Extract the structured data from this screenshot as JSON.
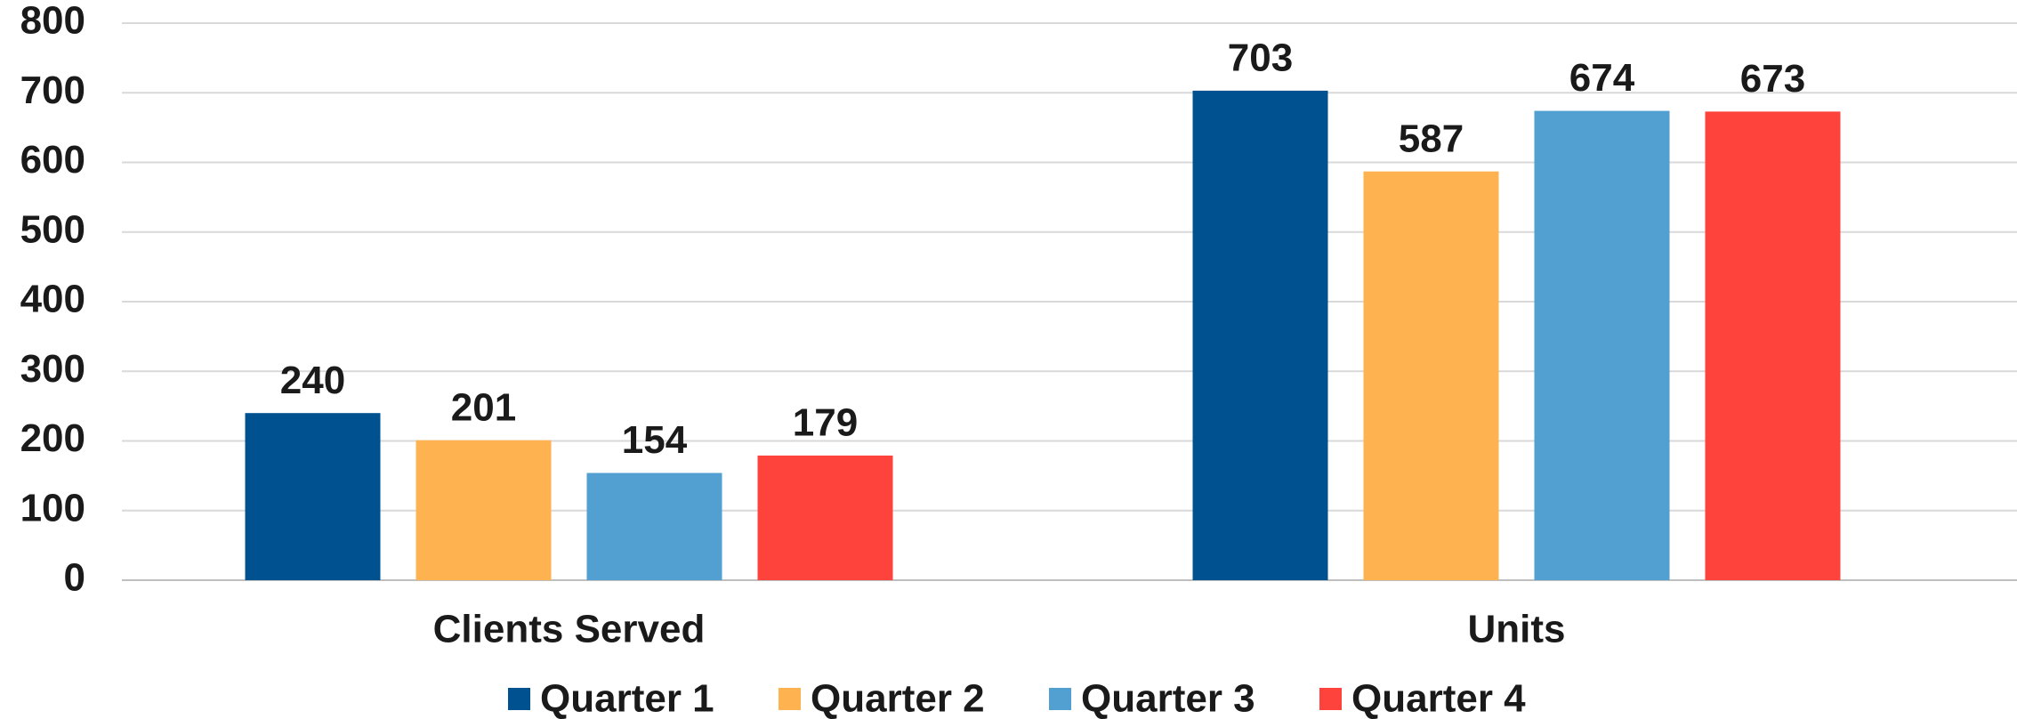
{
  "chart_data": {
    "type": "bar",
    "categories": [
      "Clients Served",
      "Units"
    ],
    "series": [
      {
        "name": "Quarter 1",
        "color": "#00518f",
        "values": [
          240,
          703
        ]
      },
      {
        "name": "Quarter 2",
        "color": "#feb350",
        "values": [
          201,
          587
        ]
      },
      {
        "name": "Quarter 3",
        "color": "#529fd1",
        "values": [
          154,
          674
        ]
      },
      {
        "name": "Quarter 4",
        "color": "#fe433c",
        "values": [
          179,
          673
        ]
      }
    ],
    "ylim": [
      0,
      800
    ],
    "yticks": [
      0,
      100,
      200,
      300,
      400,
      500,
      600,
      700,
      800
    ],
    "grid": true,
    "legend": "bottom"
  }
}
